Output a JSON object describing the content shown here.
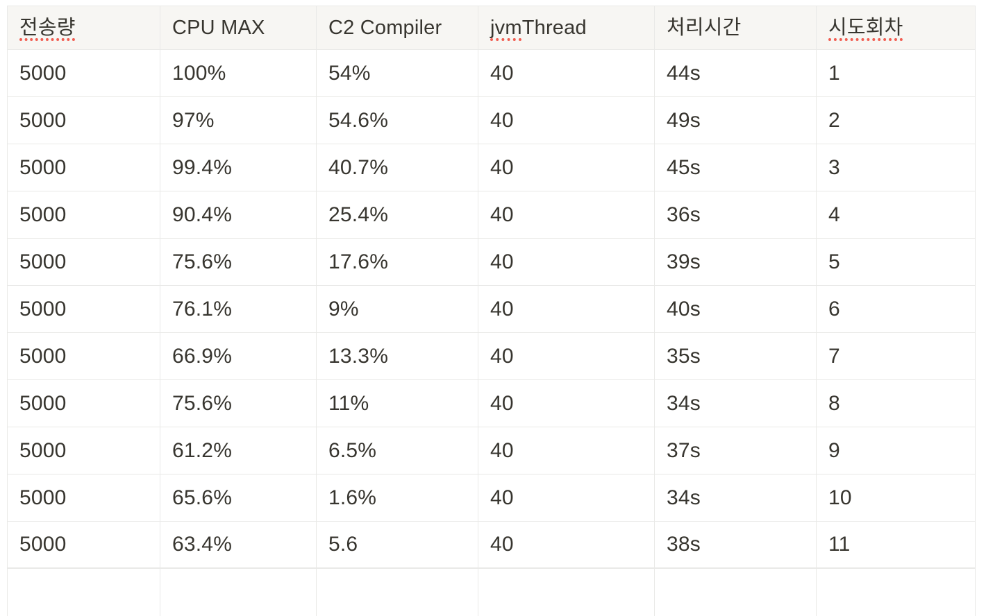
{
  "table": {
    "columns": [
      {
        "label": "전송량",
        "spellcheck": "full"
      },
      {
        "label": "CPU MAX",
        "spellcheck": "none"
      },
      {
        "label": "C2 Compiler",
        "spellcheck": "none"
      },
      {
        "label": "jvm Thread",
        "spellcheck": "partial",
        "misspelled_part": "jvm",
        "rest_part": " Thread"
      },
      {
        "label": "처리시간",
        "spellcheck": "none"
      },
      {
        "label": "시도회차",
        "spellcheck": "full"
      }
    ],
    "rows": [
      [
        "5000",
        "100%",
        "54%",
        "40",
        "44s",
        "1"
      ],
      [
        "5000",
        "97%",
        "54.6%",
        "40",
        "49s",
        "2"
      ],
      [
        "5000",
        "99.4%",
        "40.7%",
        "40",
        "45s",
        "3"
      ],
      [
        "5000",
        "90.4%",
        "25.4%",
        "40",
        "36s",
        "4"
      ],
      [
        "5000",
        "75.6%",
        "17.6%",
        "40",
        "39s",
        "5"
      ],
      [
        "5000",
        "76.1%",
        "9%",
        "40",
        "40s",
        "6"
      ],
      [
        "5000",
        "66.9%",
        "13.3%",
        "40",
        "35s",
        "7"
      ],
      [
        "5000",
        "75.6%",
        "11%",
        "40",
        "34s",
        "8"
      ],
      [
        "5000",
        "61.2%",
        "6.5%",
        "40",
        "37s",
        "9"
      ],
      [
        "5000",
        "65.6%",
        "1.6%",
        "40",
        "34s",
        "10"
      ],
      [
        "5000",
        "63.4%",
        "5.6",
        "40",
        "38s",
        "11"
      ]
    ]
  },
  "colors": {
    "header_background": "#f7f6f3",
    "border": "#e9e9e7",
    "text": "#37352f",
    "spellcheck_underline": "#f15e52",
    "page_background": "#ffffff"
  }
}
